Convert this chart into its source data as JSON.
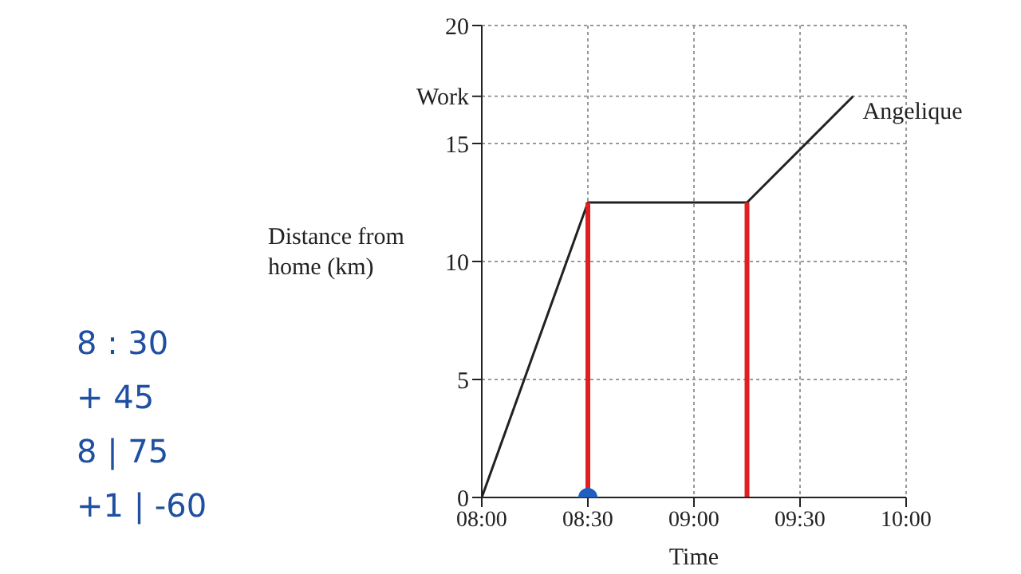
{
  "chart_data": {
    "type": "line",
    "ylabel": "Distance from home (km)",
    "xlabel": "Time",
    "xlim": [
      8,
      10
    ],
    "xticks": [
      {
        "value": 8,
        "label": "08:00"
      },
      {
        "value": 8.5,
        "label": "08:30"
      },
      {
        "value": 9,
        "label": "09:00"
      },
      {
        "value": 9.5,
        "label": "09:30"
      },
      {
        "value": 10,
        "label": "10:00"
      }
    ],
    "ylim": [
      0,
      20
    ],
    "yticks": [
      0,
      5,
      10,
      15,
      {
        "value": 17,
        "label": "Work"
      },
      20
    ],
    "grid": true,
    "series": [
      {
        "name": "Angelique",
        "color": "#222222",
        "x": [
          8,
          8.5,
          9.25,
          9.75
        ],
        "values": [
          0,
          12.5,
          12.5,
          17
        ]
      },
      {
        "color": "#e02020",
        "x": [
          8.5,
          8.5
        ],
        "values": [
          0,
          12.5
        ]
      },
      {
        "color": "#e02020",
        "x": [
          9.25,
          9.25
        ],
        "values": [
          0,
          12.5
        ]
      },
      {
        "type": "scatter",
        "marker": "circle",
        "color": "#1f5fbf",
        "x": [
          8.5
        ],
        "values": [
          0
        ]
      }
    ],
    "annotations": [
      "8 : 30",
      "+ 45",
      "8 | 75",
      "+1 | -60"
    ]
  }
}
